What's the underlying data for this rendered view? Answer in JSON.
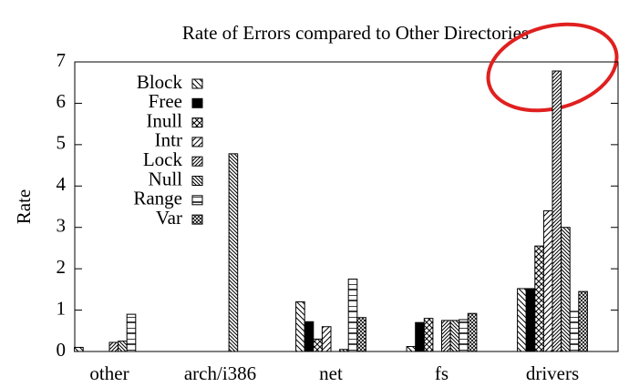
{
  "chart_data": {
    "type": "bar",
    "title": "Rate of Errors compared to Other Directories",
    "y_label": "Rate",
    "categories": [
      "other",
      "arch/i386",
      "net",
      "fs",
      "drivers"
    ],
    "series": [
      {
        "name": "Block",
        "color": "#000000",
        "values": [
          0.1,
          0,
          1.2,
          0.12,
          1.52
        ]
      },
      {
        "name": "Free",
        "color": "#000000",
        "values": [
          0,
          0,
          0.72,
          0.7,
          1.52
        ]
      },
      {
        "name": "Inull",
        "color": "#000000",
        "values": [
          0,
          0,
          0.3,
          0.8,
          2.55
        ]
      },
      {
        "name": "Intr",
        "color": "#000000",
        "values": [
          0,
          0,
          0.6,
          0,
          3.4
        ]
      },
      {
        "name": "Lock",
        "color": "#000000",
        "values": [
          0.22,
          0,
          0,
          0.75,
          6.78
        ]
      },
      {
        "name": "Null",
        "color": "#000000",
        "values": [
          0.25,
          4.78,
          0.05,
          0.75,
          3.0
        ]
      },
      {
        "name": "Range",
        "color": "#000000",
        "values": [
          0.9,
          0,
          1.75,
          0.77,
          0.97
        ]
      },
      {
        "name": "Var",
        "color": "#000000",
        "values": [
          0,
          0,
          0.82,
          0.92,
          1.45
        ]
      }
    ],
    "ylim": [
      0,
      7
    ],
    "yticks": [
      0,
      1,
      2,
      3,
      4,
      5,
      6,
      7
    ],
    "legend": "top-left"
  }
}
